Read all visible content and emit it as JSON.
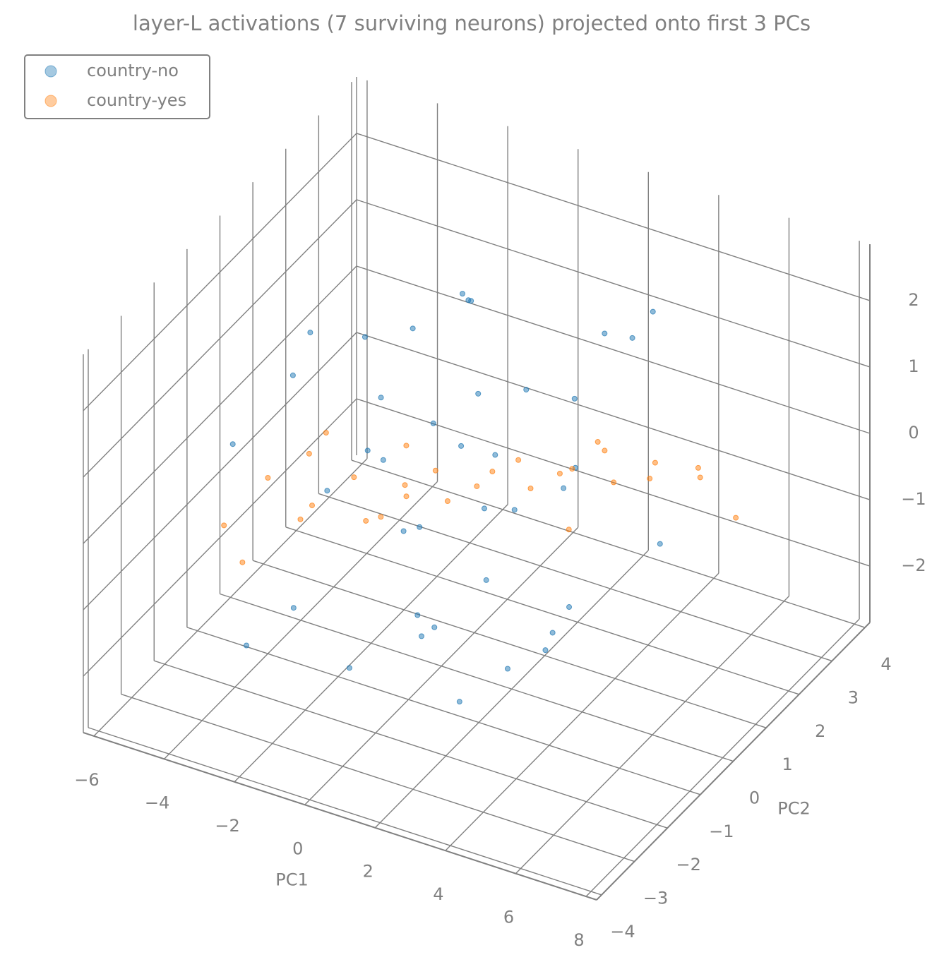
{
  "chart_data": {
    "type": "scatter3d",
    "title": "layer-L activations (7 surviving neurons) projected onto first 3 PCs",
    "xlabel": "PC1",
    "ylabel": "PC2",
    "xlim": [
      -6.3,
      8.3
    ],
    "ylim": [
      -4.15,
      4.15
    ],
    "zlim": [
      -2.85,
      2.85
    ],
    "xticks": [
      {
        "value": -6,
        "label": "−6"
      },
      {
        "value": -4,
        "label": "−4"
      },
      {
        "value": -2,
        "label": "−2"
      },
      0,
      2,
      4,
      6,
      8
    ],
    "yticks": [
      {
        "value": -4,
        "label": "−4"
      },
      {
        "value": -3,
        "label": "−3"
      },
      {
        "value": -2,
        "label": "−2"
      },
      {
        "value": -1,
        "label": "−1"
      },
      0,
      1,
      2,
      3,
      4
    ],
    "zticks": [
      {
        "value": -2,
        "label": "−2"
      },
      {
        "value": -1,
        "label": "−1"
      },
      0,
      1,
      2
    ],
    "grid": true,
    "legend": "upper left",
    "series": [
      {
        "name": "country-no",
        "color": "#1f77b4",
        "x": [
          -4.2,
          -3.1,
          -2.5,
          -1.8,
          -1.2,
          -0.6,
          0,
          0.5,
          1.1,
          1.7,
          2.3,
          3,
          3.6,
          4.4,
          -3.5,
          -2,
          -0.9,
          0.8,
          2,
          3.3,
          -4,
          -2.8,
          -1.5,
          -0.4,
          0.3,
          1.4,
          2.6,
          3.8,
          5,
          -3.3,
          -1,
          0.9,
          2.2,
          4.1,
          -2.2,
          0.1,
          1.6,
          3.1,
          -0.2,
          1
        ],
        "y": [
          0.5,
          -1.2,
          1.8,
          -0.4,
          2.1,
          -1.6,
          0.9,
          -2.3,
          1.4,
          -0.7,
          2.5,
          -1.9,
          0.2,
          1.1,
          -2.6,
          0.3,
          1.6,
          -1.1,
          -2.8,
          2.9,
          0.8,
          -1.5,
          2.2,
          -0.3,
          1.9,
          -2.1,
          0.6,
          -0.9,
          1.3,
          -2.4,
          2.7,
          0.4,
          -1.8,
          -0.5,
          1.2,
          -2.9,
          2,
          -1.3,
          0,
          3
        ],
        "z": [
          1.2,
          1.6,
          0.9,
          2.0,
          1.4,
          1.1,
          2.2,
          1.5,
          0.8,
          1.9,
          1.3,
          1.0,
          1.7,
          2.3,
          1.2,
          0.7,
          1.8,
          1.5,
          1.0,
          1.6,
          -1.3,
          -1.7,
          -0.9,
          -2.0,
          -1.4,
          -1.1,
          -2.2,
          -1.5,
          -0.8,
          -1.9,
          -1.2,
          -1.6,
          -2.1,
          -1.0,
          -1.8,
          -1.4,
          -0.9,
          -1.7,
          -2.3,
          -1.2
        ]
      },
      {
        "name": "country-yes",
        "color": "#ff7f0e",
        "x": [
          -4.5,
          -4,
          -3.6,
          -3.2,
          -2.7,
          -2.3,
          -1.9,
          -1.4,
          -1,
          -0.6,
          -0.2,
          0.3,
          0.7,
          1.1,
          1.6,
          2,
          2.5,
          2.9,
          3.4,
          3.8,
          4.3,
          4.8,
          5.3,
          5.9,
          6.5,
          -3,
          -1.6,
          0.5,
          2.2,
          4
        ],
        "y": [
          -1.8,
          -1,
          -2.2,
          -0.6,
          -1.4,
          -0.2,
          -1.9,
          -0.8,
          0,
          -1.2,
          0.4,
          -0.5,
          0.8,
          -0.1,
          1,
          0.2,
          1.3,
          0.5,
          1.6,
          0.9,
          1.9,
          1.2,
          2.2,
          1.5,
          2,
          -0.3,
          0.6,
          -1.6,
          2.4,
          -0.4
        ],
        "z": [
          -0.6,
          -0.2,
          -0.8,
          0.1,
          -0.4,
          -0.3,
          0.2,
          -0.5,
          0.3,
          -0.1,
          -0.6,
          0.4,
          -0.2,
          0.1,
          -0.4,
          0.5,
          -0.1,
          0.3,
          -0.3,
          0.6,
          0,
          0.2,
          -0.2,
          0.4,
          -0.5,
          0.3,
          -0.7,
          0.6,
          -0.3,
          0.1
        ]
      }
    ]
  }
}
